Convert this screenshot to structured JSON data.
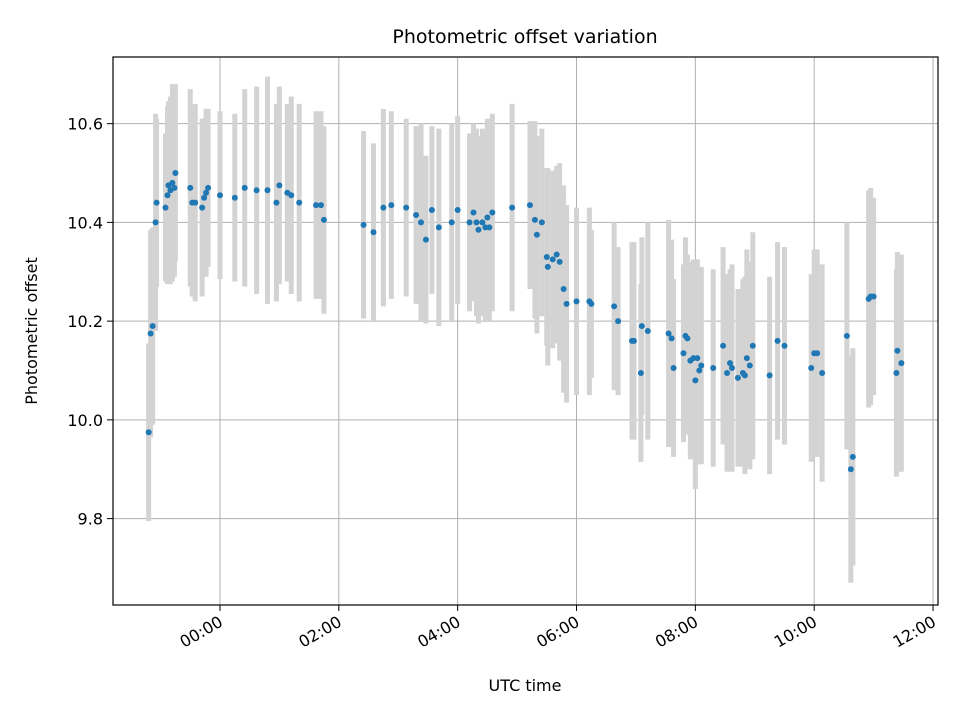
{
  "chart_data": {
    "type": "scatter",
    "title": "Photometric offset variation",
    "xlabel": "UTC time",
    "ylabel": "Photometric offset",
    "x_scale": "time",
    "xlim": [
      "-01:48",
      "12:05"
    ],
    "ylim": [
      9.625,
      10.735
    ],
    "x_ticks": [
      "00:00",
      "02:00",
      "04:00",
      "06:00",
      "08:00",
      "10:00",
      "12:00"
    ],
    "y_ticks": [
      "9.8",
      "10.0",
      "10.2",
      "10.4",
      "10.6"
    ],
    "grid": true,
    "marker_color": "#1f77b4",
    "errorbar_color": "#d3d3d3",
    "series": [
      {
        "x": [
          "-01:12",
          "-01:10",
          "-01:08",
          "-01:05",
          "-01:04",
          "-00:55",
          "-00:53",
          "-00:52",
          "-00:50",
          "-00:48",
          "-00:46",
          "-00:45",
          "-00:30",
          "-00:28",
          "-00:25",
          "-00:18",
          "-00:16",
          "-00:14",
          "-00:12",
          "00:00",
          "00:15",
          "00:25",
          "00:37",
          "00:48",
          "00:57",
          "01:00",
          "01:08",
          "01:12",
          "01:20",
          "01:37",
          "01:42",
          "01:45",
          "02:25",
          "02:35",
          "02:45",
          "02:53",
          "03:08",
          "03:18",
          "03:23",
          "03:28",
          "03:34",
          "03:41",
          "03:54",
          "04:00",
          "04:12",
          "04:16",
          "04:19",
          "04:21",
          "04:25",
          "04:28",
          "04:30",
          "04:32",
          "04:35",
          "04:55",
          "05:13",
          "05:18",
          "05:20",
          "05:25",
          "05:30",
          "05:31",
          "05:36",
          "05:40",
          "05:43",
          "05:47",
          "05:50",
          "06:00",
          "06:13",
          "06:15",
          "06:38",
          "06:42",
          "06:56",
          "06:58",
          "07:05",
          "07:06",
          "07:12",
          "07:33",
          "07:36",
          "07:38",
          "07:48",
          "07:50",
          "07:52",
          "07:55",
          "07:58",
          "08:00",
          "08:02",
          "08:04",
          "08:06",
          "08:18",
          "08:28",
          "08:32",
          "08:35",
          "08:37",
          "08:43",
          "08:48",
          "08:50",
          "08:52",
          "08:55",
          "08:58",
          "09:15",
          "09:23",
          "09:30",
          "09:57",
          "10:00",
          "10:03",
          "10:08",
          "10:33",
          "10:37",
          "10:39",
          "10:55",
          "10:57",
          "11:00",
          "11:23",
          "11:24",
          "11:28"
        ],
        "y": [
          9.975,
          10.175,
          10.19,
          10.4,
          10.44,
          10.43,
          10.455,
          10.475,
          10.465,
          10.48,
          10.47,
          10.5,
          10.47,
          10.44,
          10.44,
          10.43,
          10.45,
          10.46,
          10.47,
          10.455,
          10.45,
          10.47,
          10.465,
          10.465,
          10.44,
          10.475,
          10.46,
          10.455,
          10.44,
          10.435,
          10.435,
          10.405,
          10.395,
          10.38,
          10.43,
          10.435,
          10.43,
          10.415,
          10.4,
          10.365,
          10.425,
          10.39,
          10.4,
          10.425,
          10.4,
          10.42,
          10.4,
          10.385,
          10.4,
          10.39,
          10.41,
          10.39,
          10.42,
          10.43,
          10.435,
          10.405,
          10.375,
          10.4,
          10.33,
          10.31,
          10.325,
          10.335,
          10.32,
          10.265,
          10.235,
          10.24,
          10.24,
          10.235,
          10.23,
          10.2,
          10.16,
          10.16,
          10.095,
          10.19,
          10.18,
          10.175,
          10.165,
          10.105,
          10.135,
          10.17,
          10.165,
          10.12,
          10.125,
          10.08,
          10.125,
          10.1,
          10.11,
          10.105,
          10.15,
          10.095,
          10.115,
          10.105,
          10.085,
          10.095,
          10.09,
          10.125,
          10.11,
          10.15,
          10.09,
          10.16,
          10.15,
          10.105,
          10.135,
          10.135,
          10.095,
          10.17,
          9.9,
          9.925,
          10.245,
          10.25,
          10.25,
          10.095,
          10.14,
          10.115
        ],
        "err": [
          0.18,
          0.21,
          0.2,
          0.22,
          0.17,
          0.15,
          0.18,
          0.17,
          0.19,
          0.2,
          0.18,
          0.18,
          0.2,
          0.19,
          0.2,
          0.18,
          0.16,
          0.17,
          0.16,
          0.17,
          0.17,
          0.2,
          0.21,
          0.23,
          0.2,
          0.2,
          0.18,
          0.2,
          0.2,
          0.19,
          0.19,
          0.19,
          0.19,
          0.18,
          0.2,
          0.19,
          0.18,
          0.18,
          0.2,
          0.17,
          0.17,
          0.2,
          0.2,
          0.19,
          0.18,
          0.18,
          0.19,
          0.19,
          0.19,
          0.19,
          0.2,
          0.19,
          0.2,
          0.21,
          0.17,
          0.2,
          0.2,
          0.19,
          0.18,
          0.2,
          0.18,
          0.18,
          0.2,
          0.21,
          0.2,
          0.19,
          0.19,
          0.15,
          0.17,
          0.15,
          0.2,
          0.2,
          0.18,
          0.18,
          0.22,
          0.23,
          0.2,
          0.18,
          0.18,
          0.2,
          0.17,
          0.2,
          0.2,
          0.22,
          0.2,
          0.19,
          0.2,
          0.2,
          0.2,
          0.2,
          0.19,
          0.21,
          0.18,
          0.19,
          0.2,
          0.22,
          0.21,
          0.23,
          0.2,
          0.2,
          0.2,
          0.19,
          0.21,
          0.21,
          0.22,
          0.23,
          0.23,
          0.22,
          0.22,
          0.22,
          0.2,
          0.21,
          0.2,
          0.22
        ]
      }
    ]
  }
}
